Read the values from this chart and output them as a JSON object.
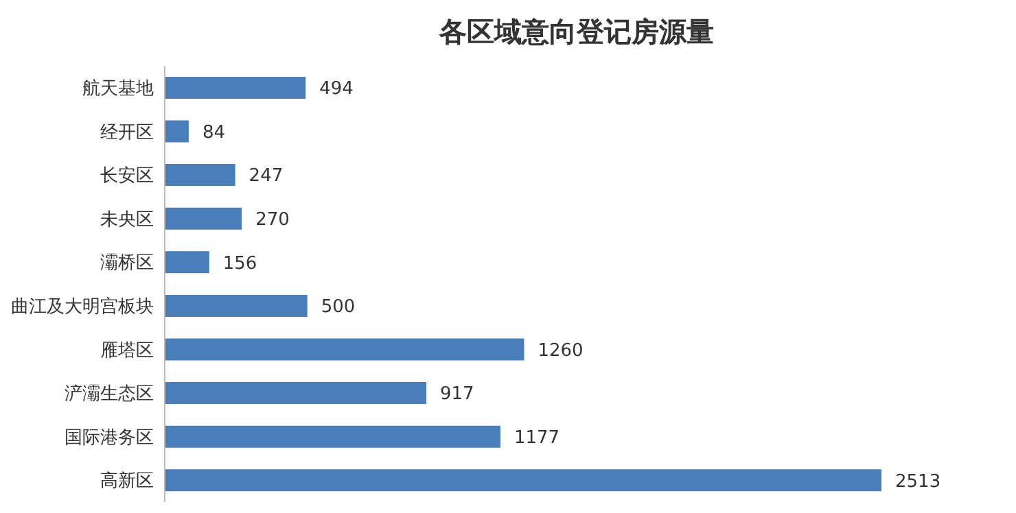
{
  "chart_data": {
    "type": "bar",
    "orientation": "horizontal",
    "title": "各区域意向登记房源量",
    "categories": [
      "航天基地",
      "经开区",
      "长安区",
      "未央区",
      "灞桥区",
      "曲江及大明宫板块",
      "雁塔区",
      "浐灞生态区",
      "国际港务区",
      "高新区"
    ],
    "values": [
      494,
      84,
      247,
      270,
      156,
      500,
      1260,
      917,
      1177,
      2513
    ],
    "color": "#4a7ebb",
    "data_labels": true,
    "grid": false
  }
}
